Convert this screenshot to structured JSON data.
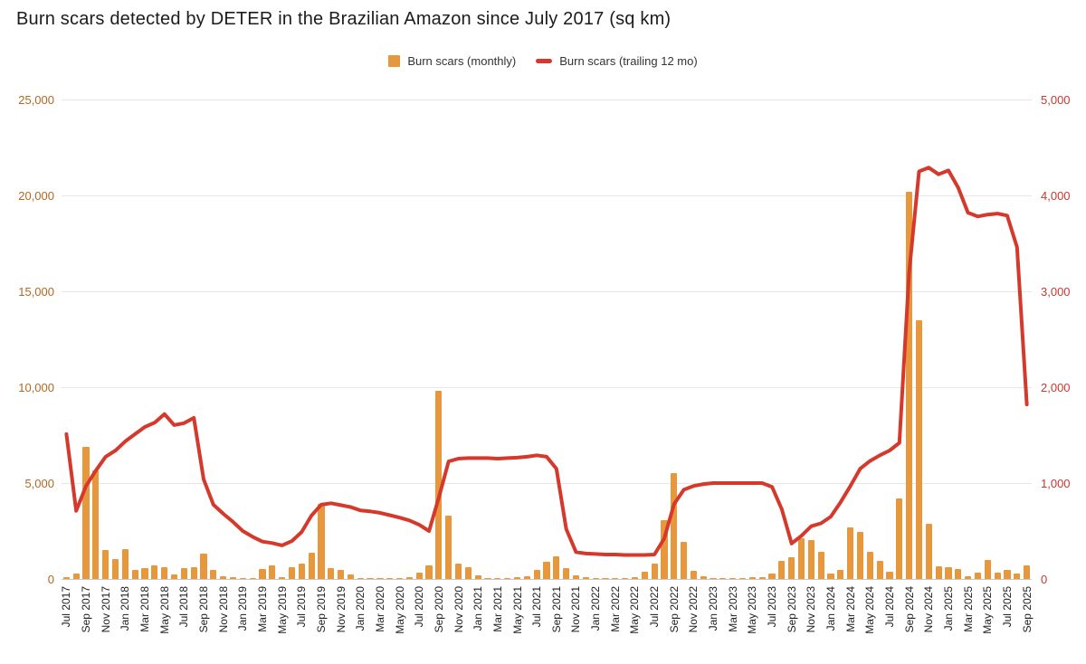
{
  "title": "Burn scars detected by DETER in the Brazilian Amazon since July 2017 (sq km)",
  "legend": {
    "monthly_label": "Burn scars (monthly)",
    "trailing_label": "Burn scars (trailing 12 mo)"
  },
  "colors": {
    "bar": "#E8983C",
    "line": "#D4392C",
    "left_axis_text": "#B26820",
    "right_axis_text": "#C43A2C",
    "grid": "#E7E7E7",
    "baseline": "#C9C9C9",
    "x_label_text": "#1F1F1F",
    "title_text": "#1C1C1C"
  },
  "chart_data": {
    "type": "bar+line combo",
    "title": "Burn scars detected by DETER in the Brazilian Amazon since July 2017 (sq km)",
    "x_tick_every": 2,
    "grid": true,
    "legend_position": "top-center",
    "left_axis": {
      "min": 0,
      "max": 25000,
      "ticks": [
        "25,000",
        "20,000",
        "15,000",
        "10,000",
        "5,000",
        "0"
      ],
      "tick_values": [
        25000,
        20000,
        15000,
        10000,
        5000,
        0
      ]
    },
    "right_axis": {
      "min": 0,
      "max": 5000,
      "ticks": [
        "5,000",
        "4,000",
        "3,000",
        "2,000",
        "1,000",
        "0"
      ],
      "tick_values": [
        5000,
        4000,
        3000,
        2000,
        1000,
        0
      ]
    },
    "categories": [
      "Jul 2017",
      "Aug 2017",
      "Sep 2017",
      "Oct 2017",
      "Nov 2017",
      "Dec 2017",
      "Jan 2018",
      "Feb 2018",
      "Mar 2018",
      "Apr 2018",
      "May 2018",
      "Jun 2018",
      "Jul 2018",
      "Aug 2018",
      "Sep 2018",
      "Oct 2018",
      "Nov 2018",
      "Dec 2018",
      "Jan 2019",
      "Feb 2019",
      "Mar 2019",
      "Apr 2019",
      "May 2019",
      "Jun 2019",
      "Jul 2019",
      "Aug 2019",
      "Sep 2019",
      "Oct 2019",
      "Nov 2019",
      "Dec 2019",
      "Jan 2020",
      "Feb 2020",
      "Mar 2020",
      "Apr 2020",
      "May 2020",
      "Jun 2020",
      "Jul 2020",
      "Aug 2020",
      "Sep 2020",
      "Oct 2020",
      "Nov 2020",
      "Dec 2020",
      "Jan 2021",
      "Feb 2021",
      "Mar 2021",
      "Apr 2021",
      "May 2021",
      "Jun 2021",
      "Jul 2021",
      "Aug 2021",
      "Sep 2021",
      "Oct 2021",
      "Nov 2021",
      "Dec 2021",
      "Jan 2022",
      "Feb 2022",
      "Mar 2022",
      "Apr 2022",
      "May 2022",
      "Jun 2022",
      "Jul 2022",
      "Aug 2022",
      "Sep 2022",
      "Oct 2022",
      "Nov 2022",
      "Dec 2022",
      "Jan 2023",
      "Feb 2023",
      "Mar 2023",
      "Apr 2023",
      "May 2023",
      "Jun 2023",
      "Jul 2023",
      "Aug 2023",
      "Sep 2023",
      "Oct 2023",
      "Nov 2023",
      "Dec 2023",
      "Jan 2024",
      "Feb 2024",
      "Mar 2024",
      "Apr 2024",
      "May 2024",
      "Jun 2024",
      "Jul 2024",
      "Aug 2024",
      "Sep 2024",
      "Oct 2024",
      "Nov 2024",
      "Dec 2024",
      "Jan 2025",
      "Feb 2025",
      "Mar 2025",
      "Apr 2025",
      "May 2025",
      "Jun 2025",
      "Jul 2025",
      "Aug 2025",
      "Sep 2025"
    ],
    "series": [
      {
        "name": "Burn scars (monthly)",
        "type": "bar",
        "axis": "left",
        "values": [
          90,
          300,
          6900,
          5650,
          1500,
          1050,
          1550,
          470,
          570,
          700,
          610,
          240,
          570,
          610,
          1320,
          470,
          120,
          90,
          60,
          30,
          520,
          700,
          90,
          610,
          800,
          1370,
          3900,
          570,
          470,
          240,
          60,
          30,
          40,
          50,
          60,
          100,
          330,
          700,
          9800,
          3300,
          800,
          600,
          200,
          50,
          60,
          60,
          80,
          150,
          450,
          900,
          1180,
          570,
          200,
          80,
          50,
          40,
          60,
          60,
          100,
          380,
          800,
          3070,
          5500,
          1950,
          420,
          150,
          60,
          40,
          50,
          60,
          80,
          100,
          280,
          940,
          1130,
          2100,
          2050,
          1400,
          300,
          470,
          2700,
          2450,
          1400,
          950,
          380,
          4200,
          20200,
          13500,
          2880,
          680,
          610,
          520,
          150,
          330,
          990,
          330,
          470,
          280,
          700
        ]
      },
      {
        "name": "Burn scars (trailing 12 mo)",
        "type": "line",
        "axis": "right",
        "values": [
          1510,
          710,
          970,
          1130,
          1275,
          1340,
          1435,
          1510,
          1585,
          1630,
          1720,
          1605,
          1625,
          1680,
          1040,
          775,
          680,
          595,
          500,
          440,
          390,
          375,
          350,
          395,
          490,
          660,
          775,
          790,
          770,
          750,
          715,
          705,
          690,
          665,
          640,
          610,
          565,
          500,
          850,
          1225,
          1255,
          1260,
          1260,
          1260,
          1255,
          1260,
          1265,
          1275,
          1290,
          1275,
          1150,
          520,
          280,
          265,
          260,
          255,
          255,
          250,
          250,
          250,
          255,
          420,
          780,
          930,
          970,
          990,
          1000,
          1000,
          1000,
          1000,
          1000,
          1000,
          960,
          726,
          370,
          450,
          550,
          580,
          650,
          800,
          970,
          1150,
          1230,
          1290,
          1340,
          1420,
          3200,
          4250,
          4290,
          4220,
          4260,
          4080,
          3820,
          3780,
          3800,
          3810,
          3790,
          3460,
          1820
        ]
      }
    ]
  }
}
